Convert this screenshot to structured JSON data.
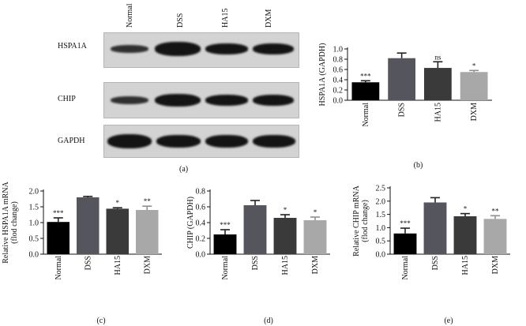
{
  "panel_a": {
    "label": "(a)",
    "lanes": [
      "Normal",
      "DSS",
      "HA15",
      "DXM"
    ],
    "blots": [
      {
        "name": "HSPA1A",
        "band_intensity": [
          0.55,
          1.0,
          0.85,
          0.8
        ]
      },
      {
        "name": "CHIP",
        "band_intensity": [
          0.55,
          0.95,
          0.85,
          0.8
        ]
      },
      {
        "name": "GAPDH",
        "band_intensity": [
          1.0,
          0.9,
          0.9,
          0.9
        ]
      }
    ]
  },
  "chart_data": [
    {
      "id": "b",
      "panel_label": "(b)",
      "type": "bar",
      "categories": [
        "Normal",
        "DSS",
        "HA15",
        "DXM"
      ],
      "values": [
        0.35,
        0.82,
        0.63,
        0.55
      ],
      "errors": [
        0.03,
        0.1,
        0.12,
        0.03
      ],
      "significance": [
        "***",
        "",
        "ns",
        "*"
      ],
      "colors": [
        "#000000",
        "#55565d",
        "#3a3a3a",
        "#a8a8a8"
      ],
      "ylabel_lines": [
        "HSPA1A (GAPDH)"
      ],
      "ylim": [
        0,
        1.0
      ],
      "ticks": [
        "0.0",
        "0.2",
        "0.4",
        "0.6",
        "0.8",
        "1.0"
      ]
    },
    {
      "id": "c",
      "panel_label": "(c)",
      "type": "bar",
      "categories": [
        "Normal",
        "DSS",
        "HA15",
        "DXM"
      ],
      "values": [
        1.02,
        1.8,
        1.44,
        1.4
      ],
      "errors": [
        0.13,
        0.03,
        0.03,
        0.12
      ],
      "significance": [
        "***",
        "",
        "*",
        "**"
      ],
      "colors": [
        "#000000",
        "#55565d",
        "#3a3a3a",
        "#a8a8a8"
      ],
      "ylabel_lines": [
        "Relative HSPA1A mRNA",
        "(flod change)"
      ],
      "ylim": [
        0,
        2.0
      ],
      "ticks": [
        "0.0",
        "0.5",
        "1.0",
        "1.5",
        "2.0"
      ]
    },
    {
      "id": "d",
      "panel_label": "(d)",
      "type": "bar",
      "categories": [
        "Normal",
        "DSS",
        "HA15",
        "DXM"
      ],
      "values": [
        0.25,
        0.62,
        0.46,
        0.43
      ],
      "errors": [
        0.06,
        0.06,
        0.04,
        0.04
      ],
      "significance": [
        "***",
        "",
        "*",
        "*"
      ],
      "colors": [
        "#000000",
        "#55565d",
        "#3a3a3a",
        "#a8a8a8"
      ],
      "ylabel_lines": [
        "CHIP (GAPDH)"
      ],
      "ylim": [
        0,
        0.8
      ],
      "ticks": [
        "0.0",
        "0.2",
        "0.4",
        "0.6",
        "0.8"
      ]
    },
    {
      "id": "e",
      "panel_label": "(e)",
      "type": "bar",
      "categories": [
        "Normal",
        "DSS",
        "HA15",
        "DXM"
      ],
      "values": [
        0.78,
        1.95,
        1.43,
        1.33
      ],
      "errors": [
        0.2,
        0.18,
        0.1,
        0.12
      ],
      "significance": [
        "***",
        "",
        "*",
        "**"
      ],
      "colors": [
        "#000000",
        "#55565d",
        "#3a3a3a",
        "#a8a8a8"
      ],
      "ylabel_lines": [
        "Relative CHIP mRNA",
        "(flod change)"
      ],
      "ylim": [
        0,
        2.5
      ],
      "ticks": [
        "0.0",
        "0.5",
        "1.0",
        "1.5",
        "2.0",
        "2.5"
      ]
    }
  ]
}
